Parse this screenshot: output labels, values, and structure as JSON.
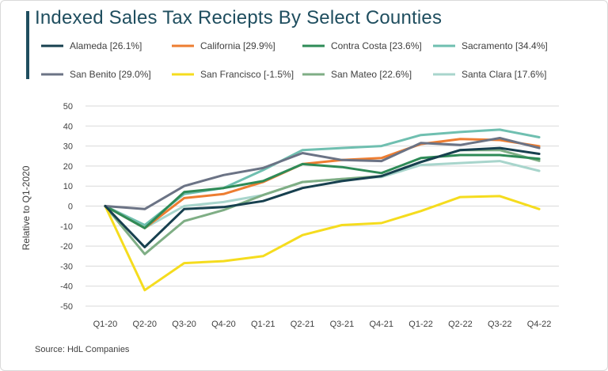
{
  "chart_data": {
    "type": "line",
    "title": "Indexed Sales Tax Reciepts By Select Counties",
    "ylabel": "Relative to Q1-2020",
    "xlabel": "",
    "source": "Source: HdL Companies",
    "ylim": [
      -50,
      50
    ],
    "yticks": [
      50,
      40,
      30,
      20,
      10,
      0,
      -10,
      -20,
      -30,
      -40,
      -50
    ],
    "grid": true,
    "legend_position": "top",
    "categories": [
      "Q1-20",
      "Q2-20",
      "Q3-20",
      "Q4-20",
      "Q1-21",
      "Q2-21",
      "Q3-21",
      "Q4-21",
      "Q1-22",
      "Q2-22",
      "Q3-22",
      "Q4-22"
    ],
    "series": [
      {
        "name": "Alameda [26.1%]",
        "color": "#17404f",
        "values": [
          0,
          -20.5,
          -1.5,
          -0.5,
          2.5,
          9,
          12.5,
          15,
          22,
          28,
          29,
          26.1
        ]
      },
      {
        "name": "California [29.9%]",
        "color": "#ed7d31",
        "values": [
          0,
          -11,
          4,
          6,
          12,
          21,
          23,
          24,
          31,
          33.5,
          33,
          29.9
        ]
      },
      {
        "name": "Contra Costa [23.6%]",
        "color": "#2e8b57",
        "values": [
          0,
          -11,
          7,
          9,
          12.5,
          21,
          19.5,
          16.5,
          24,
          25.5,
          25.5,
          23.6
        ]
      },
      {
        "name": "Sacramento [34.4%]",
        "color": "#6fbfb0",
        "values": [
          0,
          -9.5,
          6,
          9,
          18,
          28,
          29,
          30,
          35.5,
          37,
          38.2,
          34.4
        ]
      },
      {
        "name": "San Benito [29.0%]",
        "color": "#6b7385",
        "values": [
          0,
          -1.5,
          10,
          15.5,
          19,
          26.5,
          23,
          22.5,
          31.5,
          30.5,
          34,
          29.0
        ]
      },
      {
        "name": "San Francisco [-1.5%]",
        "color": "#f5dc1e",
        "values": [
          0,
          -42,
          -28.5,
          -27.5,
          -25,
          -14.5,
          -9.5,
          -8.5,
          -2.5,
          4.5,
          5,
          -1.5
        ]
      },
      {
        "name": "San Mateo [22.6%]",
        "color": "#7fae85",
        "values": [
          0,
          -24,
          -7.5,
          -2,
          5.5,
          12,
          13.5,
          15,
          22,
          28,
          28,
          22.6
        ]
      },
      {
        "name": "Santa Clara [17.6%]",
        "color": "#a8d5cc",
        "values": [
          0,
          -11,
          0,
          2,
          5.5,
          12,
          13.5,
          14.5,
          20.5,
          21.5,
          22.5,
          17.6
        ]
      }
    ]
  }
}
